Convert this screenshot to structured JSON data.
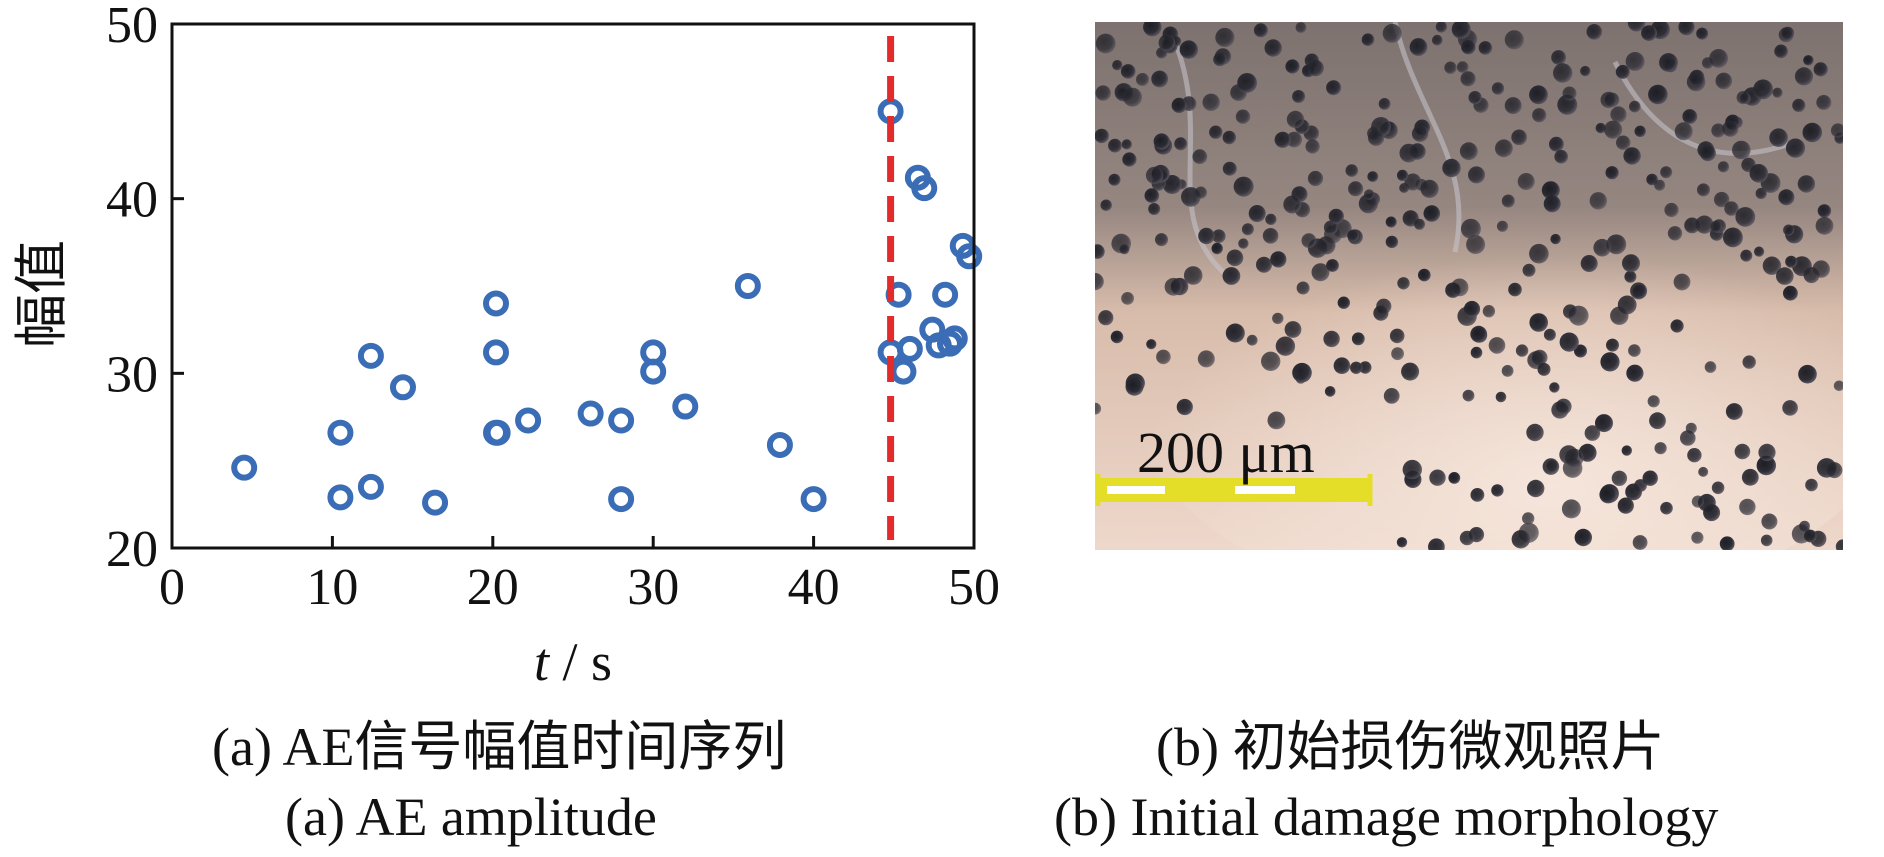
{
  "chart_data": {
    "type": "scatter",
    "xlabel_var": "t",
    "xlabel_unit": " / s",
    "ylabel": "幅值",
    "xlim": [
      0,
      50
    ],
    "ylim": [
      20,
      50
    ],
    "xticks": [
      0,
      10,
      20,
      30,
      40,
      50
    ],
    "yticks": [
      20,
      30,
      40,
      50
    ],
    "grid": false,
    "marker_color": "#3a6db5",
    "marker": "open-circle",
    "series": [
      {
        "x": [
          4.5,
          10.5,
          10.5,
          12.4,
          12.4,
          14.4,
          16.4,
          20.2,
          20.2,
          20.2,
          20.3,
          22.2,
          26.1,
          28.0,
          28.0,
          30.0,
          30.0,
          32.0,
          35.9,
          37.9,
          40.0,
          44.8,
          44.8,
          45.3,
          45.6,
          46.0,
          46.5,
          46.9,
          47.4,
          47.8,
          48.2,
          48.5,
          48.8,
          49.3,
          49.7
        ],
        "y": [
          24.6,
          26.6,
          22.9,
          31.0,
          23.5,
          29.2,
          22.6,
          34.0,
          31.2,
          26.6,
          26.6,
          27.3,
          27.7,
          27.3,
          22.8,
          31.2,
          30.1,
          28.1,
          35.0,
          25.9,
          22.8,
          45.0,
          31.2,
          34.5,
          30.1,
          31.4,
          41.2,
          40.6,
          32.5,
          31.6,
          34.5,
          31.7,
          32.0,
          37.3,
          36.7
        ]
      }
    ],
    "reference_line": {
      "x": 44.8,
      "color": "#e32b2b",
      "style": "dashed"
    }
  },
  "panel_b": {
    "scale_bar_label": "200 μm"
  },
  "captions": {
    "a_zh": "(a)  AE信号幅值时间序列",
    "a_en": "(a)  AE amplitude",
    "b_zh": "(b)  初始损伤微观照片",
    "b_en": "(b)  Initial damage morphology"
  }
}
